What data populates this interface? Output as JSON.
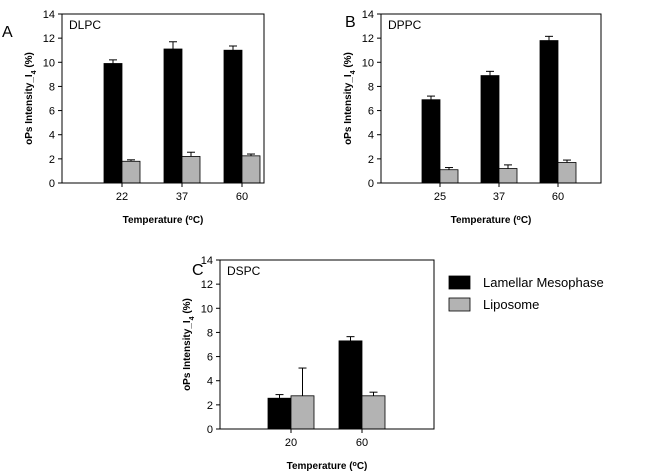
{
  "legend": [
    {
      "name": "Lamellar Mesophase",
      "color": "#000000"
    },
    {
      "name": "Liposome",
      "color": "#b3b3b3"
    }
  ],
  "chart_data": [
    {
      "type": "bar",
      "panel": "A",
      "label": "DLPC",
      "categories": [
        "22",
        "37",
        "60"
      ],
      "series": [
        {
          "name": "Lamellar Mesophase",
          "values": [
            9.9,
            11.1,
            11.0
          ],
          "errors": [
            0.3,
            0.6,
            0.35
          ]
        },
        {
          "name": "Liposome",
          "values": [
            1.8,
            2.2,
            2.25
          ],
          "errors": [
            0.12,
            0.35,
            0.15
          ]
        }
      ],
      "xlabel": "Temperature (",
      "xlabel_sup": "o",
      "xlabel_end": "C)",
      "ylabel": "oPs Intensity_I",
      "ylabel_sub": "4",
      "ylabel_end": " (%)",
      "ylim": [
        0,
        14
      ],
      "yticks": [
        "0",
        "2",
        "4",
        "6",
        "8",
        "10",
        "12",
        "14"
      ]
    },
    {
      "type": "bar",
      "panel": "B",
      "label": "DPPC",
      "categories": [
        "25",
        "37",
        "60"
      ],
      "series": [
        {
          "name": "Lamellar Mesophase",
          "values": [
            6.9,
            8.9,
            11.8
          ],
          "errors": [
            0.3,
            0.35,
            0.35
          ]
        },
        {
          "name": "Liposome",
          "values": [
            1.1,
            1.2,
            1.7
          ],
          "errors": [
            0.18,
            0.3,
            0.2
          ]
        }
      ],
      "xlabel": "Temperature (",
      "xlabel_sup": "o",
      "xlabel_end": "C)",
      "ylabel": "oPs Intensity_I",
      "ylabel_sub": "4",
      "ylabel_end": " (%)",
      "ylim": [
        0,
        14
      ],
      "yticks": [
        "0",
        "2",
        "4",
        "6",
        "8",
        "10",
        "12",
        "14"
      ]
    },
    {
      "type": "bar",
      "panel": "C",
      "label": "DSPC",
      "categories": [
        "20",
        "60"
      ],
      "series": [
        {
          "name": "Lamellar Mesophase",
          "values": [
            2.55,
            7.3
          ],
          "errors": [
            0.3,
            0.35
          ]
        },
        {
          "name": "Liposome",
          "values": [
            2.75,
            2.75
          ],
          "errors": [
            2.3,
            0.3
          ]
        }
      ],
      "xlabel": "Temperature (",
      "xlabel_sup": "o",
      "xlabel_end": "C)",
      "ylabel": "oPs Intensity_I",
      "ylabel_sub": "4",
      "ylabel_end": " (%)",
      "ylim": [
        0,
        14
      ],
      "yticks": [
        "0",
        "2",
        "4",
        "6",
        "8",
        "10",
        "12",
        "14"
      ]
    }
  ]
}
